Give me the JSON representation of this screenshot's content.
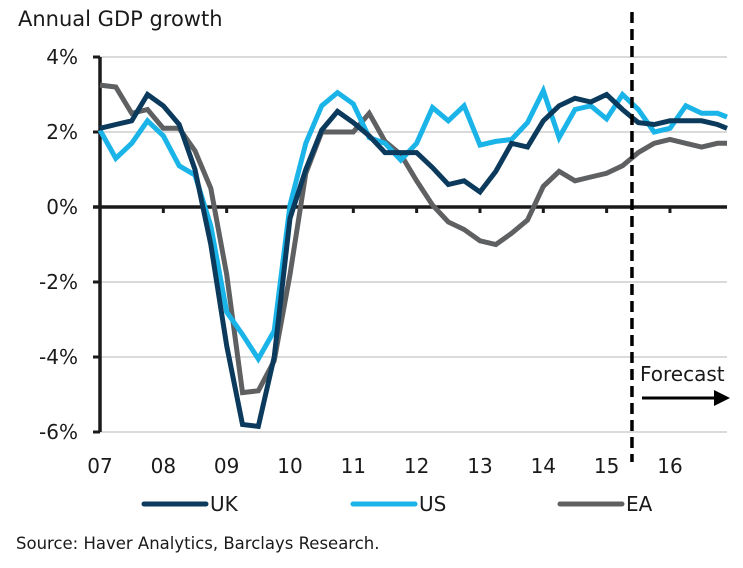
{
  "chart_data": {
    "type": "line",
    "title": "Annual GDP growth",
    "xlabel": "",
    "ylabel": "",
    "source": "Source: Haver Analytics, Barclays Research.",
    "ylim": [
      -6,
      4
    ],
    "xlim": [
      2007,
      2016.9
    ],
    "y_ticks": [
      4,
      2,
      0,
      -2,
      -4,
      -6
    ],
    "y_tick_labels": [
      "4%",
      "2%",
      "0%",
      "-2%",
      "-4%",
      "-6%"
    ],
    "x_ticks": [
      2007,
      2008,
      2009,
      2010,
      2011,
      2012,
      2013,
      2014,
      2015,
      2016
    ],
    "x_tick_labels": [
      "07",
      "08",
      "09",
      "10",
      "11",
      "12",
      "13",
      "14",
      "15",
      "16"
    ],
    "grid": "horizontal",
    "legend_position": "bottom",
    "forecast_start": 2015.4,
    "annotations": [
      {
        "text": "Forecast",
        "arrow": "right"
      }
    ],
    "x": [
      2007.0,
      2007.25,
      2007.5,
      2007.75,
      2008.0,
      2008.25,
      2008.5,
      2008.75,
      2009.0,
      2009.25,
      2009.5,
      2009.75,
      2010.0,
      2010.25,
      2010.5,
      2010.75,
      2011.0,
      2011.25,
      2011.5,
      2011.75,
      2012.0,
      2012.25,
      2012.5,
      2012.75,
      2013.0,
      2013.25,
      2013.5,
      2013.75,
      2014.0,
      2014.25,
      2014.5,
      2014.75,
      2015.0,
      2015.25,
      2015.5,
      2015.75,
      2016.0,
      2016.25,
      2016.5,
      2016.75,
      2016.9
    ],
    "series": [
      {
        "name": "UK",
        "color": "#0b3a5c",
        "values": [
          2.1,
          2.2,
          2.3,
          3.0,
          2.7,
          2.2,
          1.0,
          -1.0,
          -3.7,
          -5.8,
          -5.85,
          -4.0,
          -0.3,
          1.0,
          2.05,
          2.55,
          2.25,
          1.9,
          1.45,
          1.45,
          1.45,
          1.05,
          0.6,
          0.7,
          0.4,
          0.95,
          1.7,
          1.6,
          2.3,
          2.7,
          2.9,
          2.8,
          3.0,
          2.6,
          2.25,
          2.2,
          2.3,
          2.3,
          2.3,
          2.2,
          2.1
        ]
      },
      {
        "name": "US",
        "color": "#1ab4e8",
        "values": [
          2.05,
          1.3,
          1.7,
          2.3,
          1.9,
          1.1,
          0.85,
          -0.5,
          -2.8,
          -3.4,
          -4.05,
          -3.3,
          0.05,
          1.7,
          2.7,
          3.05,
          2.75,
          1.85,
          1.7,
          1.25,
          1.7,
          2.65,
          2.3,
          2.7,
          1.65,
          1.75,
          1.8,
          2.25,
          3.1,
          1.85,
          2.6,
          2.7,
          2.35,
          3.0,
          2.6,
          2.0,
          2.1,
          2.7,
          2.5,
          2.5,
          2.4
        ]
      },
      {
        "name": "EA",
        "color": "#5f6062",
        "values": [
          3.25,
          3.2,
          2.5,
          2.6,
          2.1,
          2.1,
          1.5,
          0.5,
          -1.8,
          -4.95,
          -4.9,
          -4.1,
          -1.8,
          0.9,
          2.0,
          2.0,
          2.0,
          2.5,
          1.75,
          1.4,
          0.7,
          0.05,
          -0.4,
          -0.6,
          -0.9,
          -1.0,
          -0.7,
          -0.35,
          0.55,
          0.95,
          0.7,
          0.8,
          0.9,
          1.1,
          1.45,
          1.7,
          1.8,
          1.7,
          1.6,
          1.7,
          1.7
        ]
      }
    ]
  }
}
